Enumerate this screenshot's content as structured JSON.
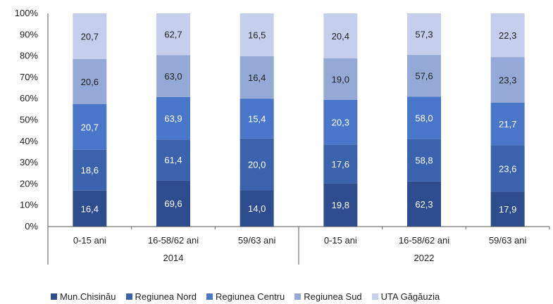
{
  "chart_data": {
    "type": "bar",
    "stacked": "percent",
    "y_ticks": [
      "0%",
      "10%",
      "20%",
      "30%",
      "40%",
      "50%",
      "60%",
      "70%",
      "80%",
      "90%",
      "100%"
    ],
    "ylim": [
      0,
      100
    ],
    "groups": [
      {
        "label": "2014",
        "categories": [
          "0-15 ani",
          "16-58/62 ani",
          "59/63 ani"
        ]
      },
      {
        "label": "2022",
        "categories": [
          "0-15 ani",
          "16-58/62 ani",
          "59/63 ani"
        ]
      }
    ],
    "series": [
      {
        "name": "Mun.Chisinău",
        "color": "#2e4d8f",
        "values": [
          16.4,
          69.6,
          14.0,
          19.8,
          62.3,
          17.9
        ],
        "labels": [
          "16,4",
          "69,6",
          "14,0",
          "19,8",
          "62,3",
          "17,9"
        ]
      },
      {
        "name": "Regiunea Nord",
        "color": "#3b62ad",
        "values": [
          18.6,
          61.4,
          20.0,
          17.6,
          58.8,
          23.6
        ],
        "labels": [
          "18,6",
          "61,4",
          "20,0",
          "17,6",
          "58,8",
          "23,6"
        ]
      },
      {
        "name": "Regiunea Centru",
        "color": "#4a76c9",
        "values": [
          20.7,
          63.9,
          15.4,
          20.3,
          58.0,
          21.7
        ],
        "labels": [
          "20,7",
          "63,9",
          "15,4",
          "20,3",
          "58,0",
          "21,7"
        ]
      },
      {
        "name": "Regiunea Sud",
        "color": "#95a9d6",
        "values": [
          20.6,
          63.0,
          16.4,
          19.0,
          57.6,
          23.3
        ],
        "labels": [
          "20,6",
          "63,0",
          "16,4",
          "19,0",
          "57,6",
          "23,3"
        ]
      },
      {
        "name": "UTA Găgăuzia",
        "color": "#c5cfec",
        "values": [
          20.7,
          62.7,
          16.5,
          20.4,
          57.3,
          22.3
        ],
        "labels": [
          "20,7",
          "62,7",
          "16,5",
          "20,4",
          "57,3",
          "22,3"
        ]
      }
    ],
    "legend_position": "bottom"
  }
}
